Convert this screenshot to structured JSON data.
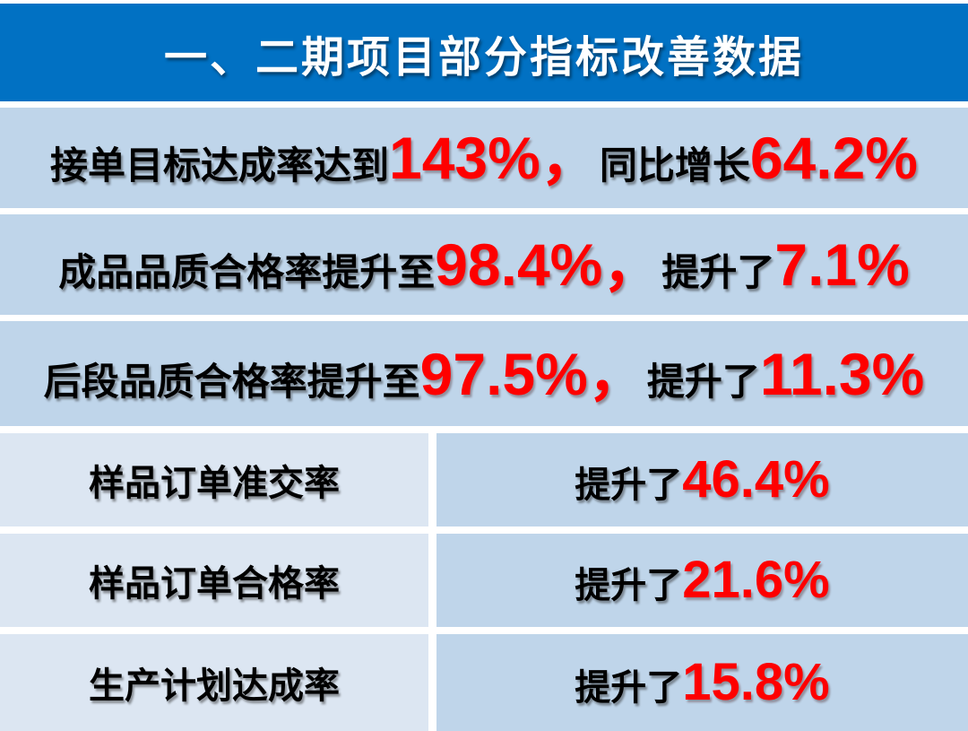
{
  "header": {
    "title": "一、二期项目部分指标改善数据"
  },
  "colors": {
    "header_bg": "#0171C3",
    "header_text": "#FFFFFF",
    "row_bg": "#BFD5EA",
    "left_cell_bg": "#DCE6F2",
    "accent_red": "#FE0000",
    "text_black": "#000000",
    "gap_white": "#FFFFFF"
  },
  "summary_rows": [
    {
      "prefix": "接单目标达成率达到",
      "value1": "143%，",
      "mid": "同比增长",
      "value2": "64.2%"
    },
    {
      "prefix": "成品品质合格率提升至",
      "value1": "98.4%，",
      "mid": "提升了",
      "value2": "7.1%"
    },
    {
      "prefix": "后段品质合格率提升至",
      "value1": "97.5%，",
      "mid": "提升了",
      "value2": "11.3%"
    }
  ],
  "table_rows": [
    {
      "metric": "样品订单准交率",
      "label": "提升了",
      "value": "46.4%"
    },
    {
      "metric": "样品订单合格率",
      "label": "提升了",
      "value": "21.6%"
    },
    {
      "metric": "生产计划达成率",
      "label": "提升了",
      "value": "15.8%"
    }
  ]
}
